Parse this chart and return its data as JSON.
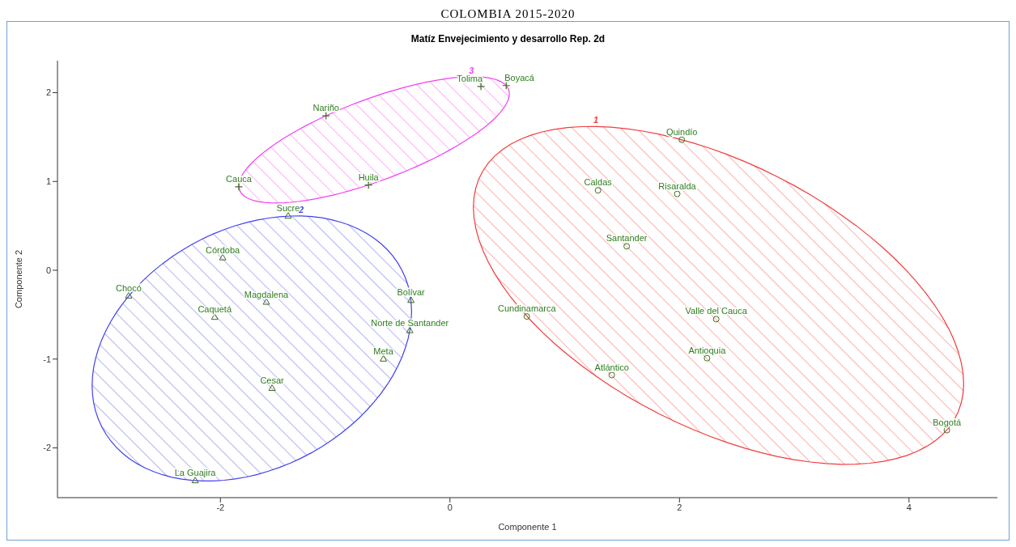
{
  "chart_data": {
    "type": "scatter",
    "title": "COLOMBIA 2015-2020",
    "subtitle": "Matíz Envejecimiento y desarrollo Rep. 2d",
    "xlabel": "Componente 1",
    "ylabel": "Componente 2",
    "xlim": [
      -3.42,
      4.77
    ],
    "ylim": [
      -2.56,
      2.36
    ],
    "xticks": [
      -2,
      0,
      2,
      4
    ],
    "yticks": [
      -2,
      -1,
      0,
      1,
      2
    ],
    "grid": false,
    "series": [
      {
        "type": "scatter",
        "color": "#3d6b1e",
        "marker": "circle",
        "x": [
          2.02,
          1.29,
          1.98,
          1.54,
          0.67,
          2.32,
          2.24,
          1.41,
          4.33
        ],
        "values": [
          1.47,
          0.9,
          0.86,
          0.27,
          -0.52,
          -0.55,
          -0.99,
          -1.18,
          -1.8
        ]
      },
      {
        "type": "scatter",
        "color": "#3d6b1e",
        "marker": "triangle",
        "x": [
          -1.41,
          -1.98,
          -2.8,
          -1.6,
          -2.05,
          -0.34,
          -0.35,
          -0.58,
          -1.55,
          -2.22
        ],
        "values": [
          0.61,
          0.14,
          -0.29,
          -0.36,
          -0.53,
          -0.34,
          -0.68,
          -1.0,
          -1.33,
          -2.37
        ]
      },
      {
        "type": "scatter",
        "color": "#3d6b1e",
        "marker": "cross",
        "x": [
          0.27,
          0.49,
          -1.08,
          -1.84,
          -0.71
        ],
        "values": [
          2.07,
          2.08,
          1.74,
          0.94,
          0.96
        ]
      }
    ],
    "annotations": [
      "1",
      "2",
      "3",
      {
        "text": "Quindío",
        "x": 2.02,
        "y": 1.47
      },
      {
        "text": "Caldas",
        "x": 1.29,
        "y": 0.9
      },
      {
        "text": "Risaralda",
        "x": 1.98,
        "y": 0.86
      },
      {
        "text": "Santander",
        "x": 1.54,
        "y": 0.27
      },
      {
        "text": "Cundinamarca",
        "x": 0.67,
        "y": -0.52
      },
      {
        "text": "Valle del Cauca",
        "x": 2.32,
        "y": -0.55
      },
      {
        "text": "Antioquia",
        "x": 2.24,
        "y": -0.99
      },
      {
        "text": "Atlántico",
        "x": 1.41,
        "y": -1.18
      },
      {
        "text": "Bogotá",
        "x": 4.33,
        "y": -1.8
      },
      {
        "text": "Sucre",
        "x": -1.41,
        "y": 0.61
      },
      {
        "text": "Córdoba",
        "x": -1.98,
        "y": 0.14
      },
      {
        "text": "Chocó",
        "x": -2.8,
        "y": -0.29
      },
      {
        "text": "Magdalena",
        "x": -1.6,
        "y": -0.36
      },
      {
        "text": "Caquetá",
        "x": -2.05,
        "y": -0.53
      },
      {
        "text": "Bolívar",
        "x": -0.34,
        "y": -0.34
      },
      {
        "text": "Norte de Santander",
        "x": -0.35,
        "y": -0.68
      },
      {
        "text": "Meta",
        "x": -0.58,
        "y": -1.0
      },
      {
        "text": "Cesar",
        "x": -1.55,
        "y": -1.33
      },
      {
        "text": "La Guajira",
        "x": -2.22,
        "y": -2.37
      },
      {
        "text": "Tolima",
        "x": 0.27,
        "y": 2.07
      },
      {
        "text": "Boyacá",
        "x": 0.49,
        "y": 2.08
      },
      {
        "text": "Nariño",
        "x": -1.08,
        "y": 1.74
      },
      {
        "text": "Cauca",
        "x": -1.84,
        "y": 0.94
      },
      {
        "text": "Huila",
        "x": -0.71,
        "y": 0.96
      }
    ]
  }
}
